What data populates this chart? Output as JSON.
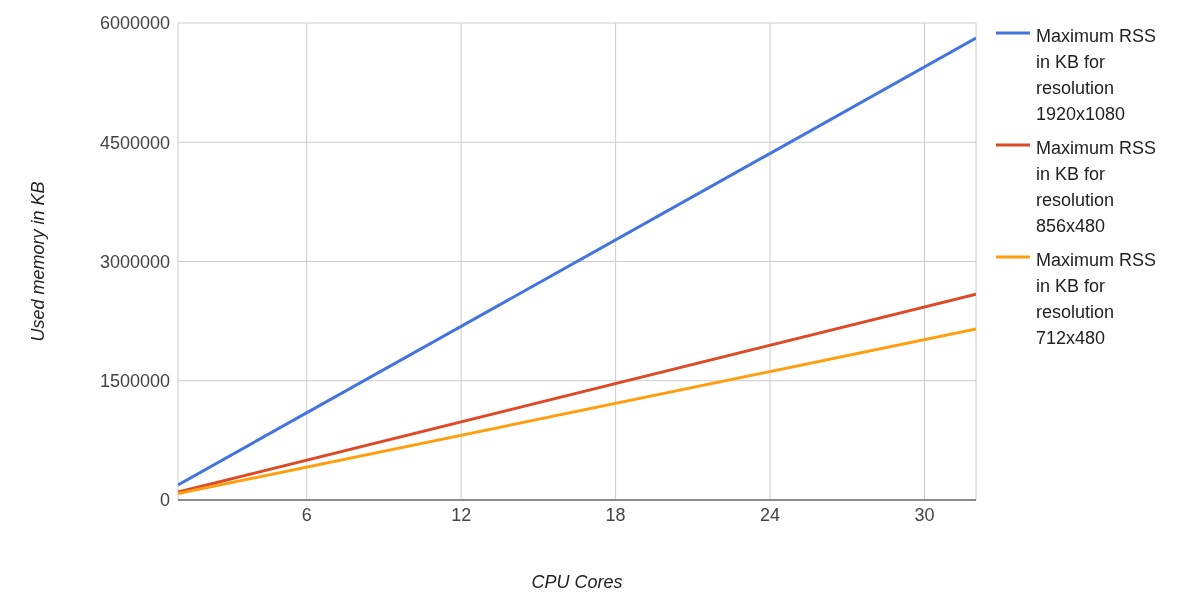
{
  "chart_data": {
    "type": "line",
    "xlabel": "CPU Cores",
    "ylabel": "Used memory in KB",
    "x": [
      1,
      32
    ],
    "series": [
      {
        "name": "Maximum RSS in KB for resolution 1920x1080",
        "color": "#4374e0",
        "values": [
          190000,
          5810000
        ]
      },
      {
        "name": "Maximum RSS in KB for resolution 856x480",
        "color": "#dc4a26",
        "values": [
          100000,
          2590000
        ]
      },
      {
        "name": "Maximum RSS in KB for resolution 712x480",
        "color": "#ff9f0f",
        "values": [
          80000,
          2150000
        ]
      }
    ],
    "xlim": [
      1,
      32
    ],
    "xticks": [
      6,
      12,
      18,
      24,
      30
    ],
    "ylim": [
      0,
      6000000
    ],
    "yticks": [
      0,
      1500000,
      3000000,
      4500000,
      6000000
    ],
    "grid": true,
    "legend": "right",
    "marker": "none",
    "line_style": "solid"
  }
}
